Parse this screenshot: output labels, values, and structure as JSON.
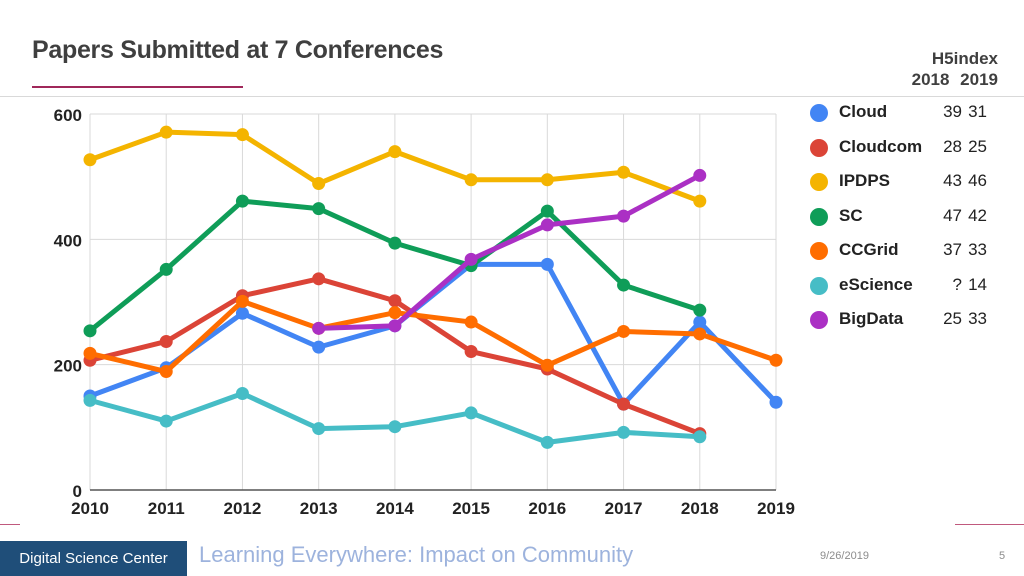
{
  "slide": {
    "title": "Papers Submitted at 7 Conferences",
    "h5_header": "H5index",
    "h5_years": [
      "2018",
      "2019"
    ],
    "footer_center": "Digital Science Center",
    "footer_subtitle": "Learning Everywhere: Impact on Community",
    "footer_date": "9/26/2019",
    "page_number": "5"
  },
  "chart_data": {
    "type": "line",
    "x": [
      2010,
      2011,
      2012,
      2013,
      2014,
      2015,
      2016,
      2017,
      2018,
      2019
    ],
    "ylim": [
      0,
      600
    ],
    "yticks": [
      0,
      200,
      400,
      600
    ],
    "grid": true,
    "legend_position": "right",
    "series": [
      {
        "name": "Cloud",
        "color": "#4285f4",
        "h5_2018": "39",
        "h5_2019": "31",
        "values": [
          150,
          195,
          282,
          228,
          262,
          360,
          360,
          137,
          268,
          140
        ]
      },
      {
        "name": "Cloudcom",
        "color": "#db4437",
        "h5_2018": "28",
        "h5_2019": "25",
        "values": [
          207,
          237,
          310,
          337,
          302,
          221,
          193,
          137,
          90,
          null
        ]
      },
      {
        "name": "IPDPS",
        "color": "#f4b400",
        "h5_2018": "43",
        "h5_2019": "46",
        "values": [
          527,
          571,
          567,
          489,
          540,
          495,
          495,
          507,
          461,
          null
        ]
      },
      {
        "name": "SC",
        "color": "#0f9d58",
        "h5_2018": "47",
        "h5_2019": "42",
        "values": [
          254,
          352,
          461,
          449,
          394,
          358,
          445,
          327,
          287,
          null
        ]
      },
      {
        "name": "CCGrid",
        "color": "#ff6d00",
        "h5_2018": "37",
        "h5_2019": "33",
        "values": [
          218,
          189,
          301,
          258,
          283,
          268,
          199,
          253,
          249,
          207
        ]
      },
      {
        "name": "eScience",
        "color": "#46bdc6",
        "h5_2018": "?",
        "h5_2019": "14",
        "values": [
          143,
          110,
          154,
          98,
          101,
          123,
          76,
          92,
          85,
          null
        ]
      },
      {
        "name": "BigData",
        "color": "#ab30c4",
        "h5_2018": "25",
        "h5_2019": "33",
        "values": [
          null,
          null,
          null,
          258,
          262,
          368,
          423,
          437,
          502,
          null
        ]
      }
    ]
  }
}
